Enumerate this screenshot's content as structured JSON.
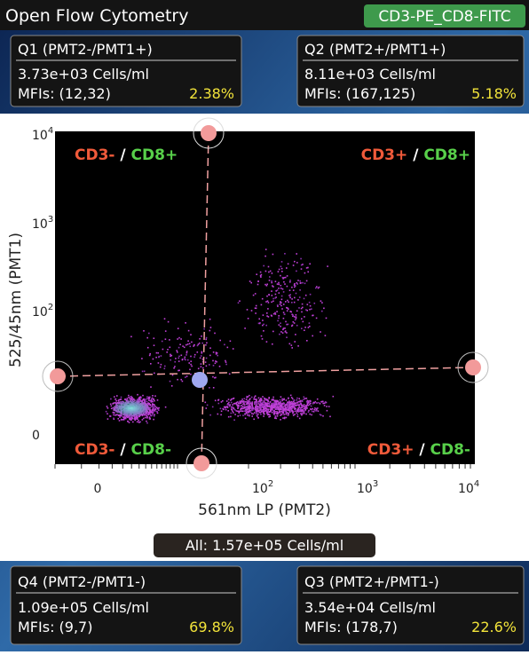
{
  "header": {
    "title": "Open Flow Cytometry",
    "sample": "CD3-PE_CD8-FITC"
  },
  "quadrants": [
    {
      "label": "Q1 (PMT2-/PMT1+)",
      "concentration": "3.73e+03 Cells/ml",
      "mfis": "MFIs: (12,32)",
      "percent": "2.38%"
    },
    {
      "label": "Q2 (PMT2+/PMT1+)",
      "concentration": "8.11e+03 Cells/ml",
      "mfis": "MFIs: (167,125)",
      "percent": "5.18%"
    },
    {
      "label": "Q4 (PMT2-/PMT1-)",
      "concentration": "1.09e+05 Cells/ml",
      "mfis": "MFIs: (9,7)",
      "percent": "69.8%"
    },
    {
      "label": "Q3 (PMT2+/PMT1-)",
      "concentration": "3.54e+04 Cells/ml",
      "mfis": "MFIs: (178,7)",
      "percent": "22.6%"
    }
  ],
  "plot": {
    "x_label": "561nm LP (PMT2)",
    "y_label": "525/45nm (PMT1)",
    "x_ticks": [
      {
        "base": "0"
      },
      {
        "base": "10",
        "exp": "2"
      },
      {
        "base": "10",
        "exp": "3"
      },
      {
        "base": "10",
        "exp": "4"
      }
    ],
    "y_ticks": [
      {
        "base": "10",
        "exp": "4"
      },
      {
        "base": "10",
        "exp": "3"
      },
      {
        "base": "10",
        "exp": "2"
      },
      {
        "base": "0"
      }
    ],
    "quadrant_labels": [
      {
        "cd3": "CD3-",
        "sep": "/",
        "cd8": "CD8+"
      },
      {
        "cd3": "CD3+",
        "sep": "/",
        "cd8": "CD8+"
      },
      {
        "cd3": "CD3-",
        "sep": "/",
        "cd8": "CD8-"
      },
      {
        "cd3": "CD3+",
        "sep": "/",
        "cd8": "CD8-"
      }
    ]
  },
  "total": "All: 1.57e+05 Cells/ml"
}
